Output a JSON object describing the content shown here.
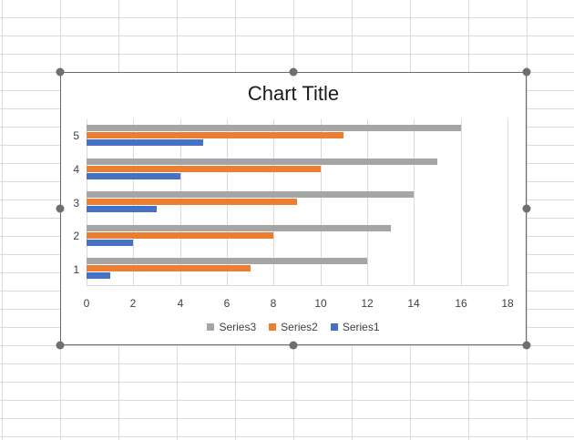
{
  "chart_data": {
    "type": "bar",
    "orientation": "horizontal",
    "title": "Chart Title",
    "xlabel": "",
    "ylabel": "",
    "categories": [
      "1",
      "2",
      "3",
      "4",
      "5"
    ],
    "series": [
      {
        "name": "Series1",
        "color": "#4472c4",
        "values": [
          1,
          2,
          3,
          4,
          5
        ]
      },
      {
        "name": "Series2",
        "color": "#ed7d31",
        "values": [
          7,
          8,
          9,
          10,
          11
        ]
      },
      {
        "name": "Series3",
        "color": "#a5a5a5",
        "values": [
          12,
          13,
          14,
          15,
          16
        ]
      }
    ],
    "xlim": [
      0,
      18
    ],
    "x_ticks": [
      "0",
      "2",
      "4",
      "6",
      "8",
      "10",
      "12",
      "14",
      "16",
      "18"
    ],
    "grid": "vertical",
    "legend_position": "bottom",
    "legend_order": [
      "Series3",
      "Series2",
      "Series1"
    ]
  },
  "chart": {
    "title": "Chart Title",
    "legend": [
      {
        "label": "Series3",
        "color": "#a5a5a5"
      },
      {
        "label": "Series2",
        "color": "#ed7d31"
      },
      {
        "label": "Series1",
        "color": "#4472c4"
      }
    ]
  }
}
